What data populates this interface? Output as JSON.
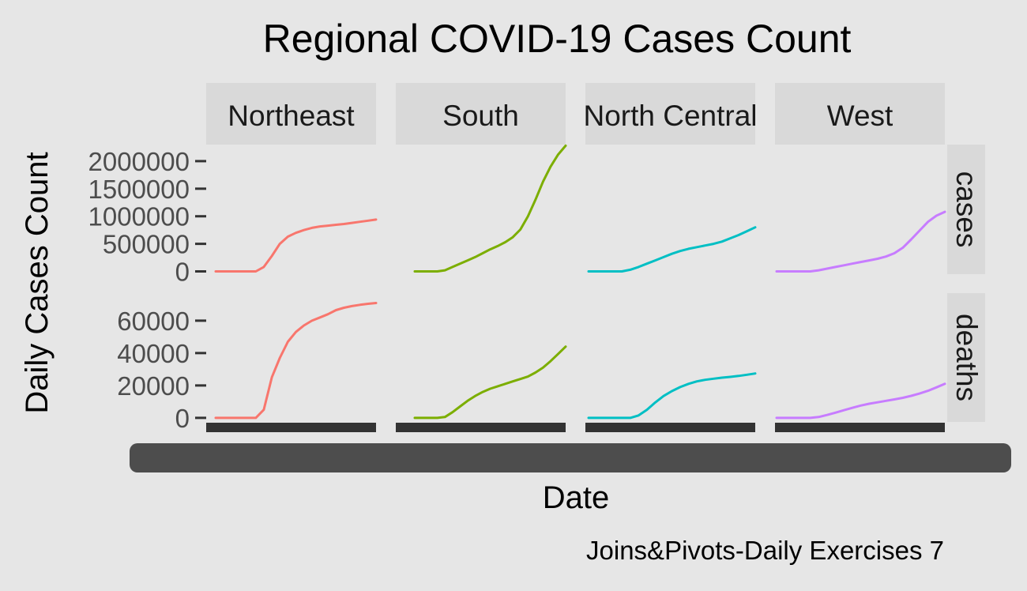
{
  "chart_data": {
    "type": "line",
    "title": "Regional COVID-19 Cases Count",
    "xlabel": "Date",
    "ylabel": "Daily Cases Count",
    "caption": "Joins&Pivots-Daily Exercises 7",
    "grid": false,
    "legend": "none",
    "column_facets": [
      "Northeast",
      "South",
      "North Central",
      "West"
    ],
    "row_facets": [
      "cases",
      "deaths"
    ],
    "colors": {
      "Northeast": "#F8766D",
      "South": "#7CAE00",
      "North Central": "#00BFC4",
      "West": "#C77CFF"
    },
    "y_axes": {
      "cases": {
        "ylim": [
          -50000,
          2300000
        ],
        "ticks": [
          0,
          500000,
          1000000,
          1500000,
          2000000
        ],
        "tick_labels": [
          "0",
          "500000",
          "1000000",
          "1500000",
          "2000000"
        ]
      },
      "deaths": {
        "ylim": [
          -2500,
          77000
        ],
        "ticks": [
          0,
          20000,
          40000,
          60000
        ],
        "tick_labels": [
          "0",
          "20000",
          "40000",
          "60000"
        ]
      }
    },
    "x_progress": [
      0,
      0.05,
      0.1,
      0.15,
      0.2,
      0.25,
      0.3,
      0.35,
      0.4,
      0.45,
      0.5,
      0.55,
      0.6,
      0.65,
      0.7,
      0.75,
      0.8,
      0.85,
      0.9,
      0.95,
      1.0
    ],
    "panels": {
      "Northeast": {
        "cases": [
          0,
          0,
          0,
          0,
          0,
          0,
          80000,
          280000,
          500000,
          630000,
          700000,
          750000,
          790000,
          815000,
          830000,
          845000,
          860000,
          880000,
          900000,
          920000,
          940000
        ],
        "deaths": [
          0,
          0,
          0,
          0,
          0,
          0,
          5000,
          25000,
          37000,
          47000,
          53000,
          57000,
          60000,
          62000,
          64000,
          66500,
          68000,
          69000,
          69800,
          70400,
          70900
        ]
      },
      "South": {
        "cases": [
          0,
          0,
          0,
          0,
          20000,
          80000,
          140000,
          200000,
          260000,
          330000,
          400000,
          460000,
          530000,
          620000,
          760000,
          1000000,
          1300000,
          1630000,
          1900000,
          2120000,
          2280000
        ],
        "deaths": [
          0,
          0,
          0,
          0,
          500,
          3500,
          7000,
          10500,
          13500,
          16000,
          18000,
          19500,
          21000,
          22500,
          24000,
          25500,
          28000,
          31000,
          35000,
          39500,
          44000
        ]
      },
      "North Central": {
        "cases": [
          0,
          0,
          0,
          0,
          0,
          30000,
          80000,
          140000,
          200000,
          260000,
          320000,
          370000,
          410000,
          440000,
          470000,
          500000,
          540000,
          600000,
          660000,
          730000,
          800000
        ],
        "deaths": [
          0,
          0,
          0,
          0,
          0,
          0,
          1500,
          5000,
          9500,
          13500,
          16500,
          19000,
          21000,
          22500,
          23500,
          24200,
          24800,
          25300,
          25900,
          26600,
          27400
        ]
      },
      "West": {
        "cases": [
          0,
          0,
          0,
          0,
          0,
          20000,
          50000,
          80000,
          110000,
          140000,
          170000,
          200000,
          230000,
          270000,
          330000,
          430000,
          580000,
          740000,
          900000,
          1010000,
          1080000
        ],
        "deaths": [
          0,
          0,
          0,
          0,
          0,
          500,
          1800,
          3200,
          4700,
          6200,
          7600,
          8700,
          9600,
          10500,
          11400,
          12400,
          13600,
          15000,
          16700,
          18800,
          21000
        ]
      }
    }
  }
}
